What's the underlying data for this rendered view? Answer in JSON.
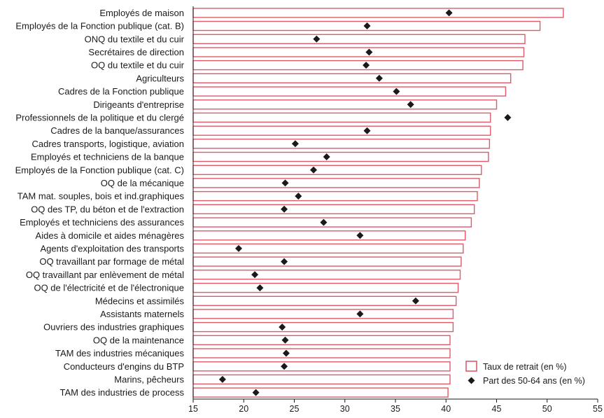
{
  "chart_data": {
    "type": "bar",
    "orientation": "horizontal",
    "categories": [
      "Employés de maison",
      "Employés de la Fonction publique (cat. B)",
      "ONQ du textile et du cuir",
      "Secrétaires de direction",
      "OQ du textile et du cuir",
      "Agriculteurs",
      "Cadres de la Fonction publique",
      "Dirigeants d'entreprise",
      "Professionnels de la politique et du clergé",
      "Cadres de la banque/assurances",
      "Cadres transports, logistique, aviation",
      "Employés et techniciens de la banque",
      "Employés de la Fonction publique (cat. C)",
      "OQ de la mécanique",
      "TAM mat. souples, bois et ind.graphiques",
      "OQ des TP, du béton et de l'extraction",
      "Employés et techniciens des assurances",
      "Aides à domicile et aides ménagères",
      "Agents d'exploitation des transports",
      "OQ travaillant par formage de métal",
      "OQ travaillant par enlèvement de métal",
      "OQ de l'électricité et de l'électronique",
      "Médecins et assimilés",
      "Assistants maternels",
      "Ouvriers des industries graphiques",
      "OQ de la maintenance",
      "TAM des industries mécaniques",
      "Conducteurs d'engins du BTP",
      "Marins, pêcheurs",
      "TAM des industries de process"
    ],
    "series": [
      {
        "name": "Taux de retrait (en %)",
        "kind": "bar",
        "color": "#e05a6a",
        "values": [
          51.6,
          49.3,
          47.8,
          47.7,
          47.6,
          46.4,
          45.9,
          45.0,
          44.4,
          44.4,
          44.3,
          44.2,
          43.5,
          43.3,
          43.1,
          42.8,
          42.5,
          41.9,
          41.7,
          41.5,
          41.4,
          41.2,
          41.0,
          40.7,
          40.7,
          40.4,
          40.4,
          40.4,
          40.4,
          40.2
        ]
      },
      {
        "name": "Part des 50-64 ans (en %)",
        "kind": "marker",
        "color": "#1a1a1a",
        "values": [
          40.3,
          32.2,
          27.2,
          32.4,
          32.1,
          33.4,
          35.1,
          36.5,
          46.1,
          32.2,
          25.1,
          28.2,
          26.9,
          24.1,
          25.4,
          24.0,
          27.9,
          31.5,
          19.5,
          24.0,
          21.1,
          21.6,
          37.0,
          31.5,
          23.8,
          24.1,
          24.2,
          24.0,
          17.9,
          21.2
        ]
      }
    ],
    "xlim": [
      15,
      55
    ],
    "xticks": [
      15,
      20,
      25,
      30,
      35,
      40,
      45,
      50,
      55
    ],
    "grid": false,
    "legend_position": "bottom-right"
  }
}
